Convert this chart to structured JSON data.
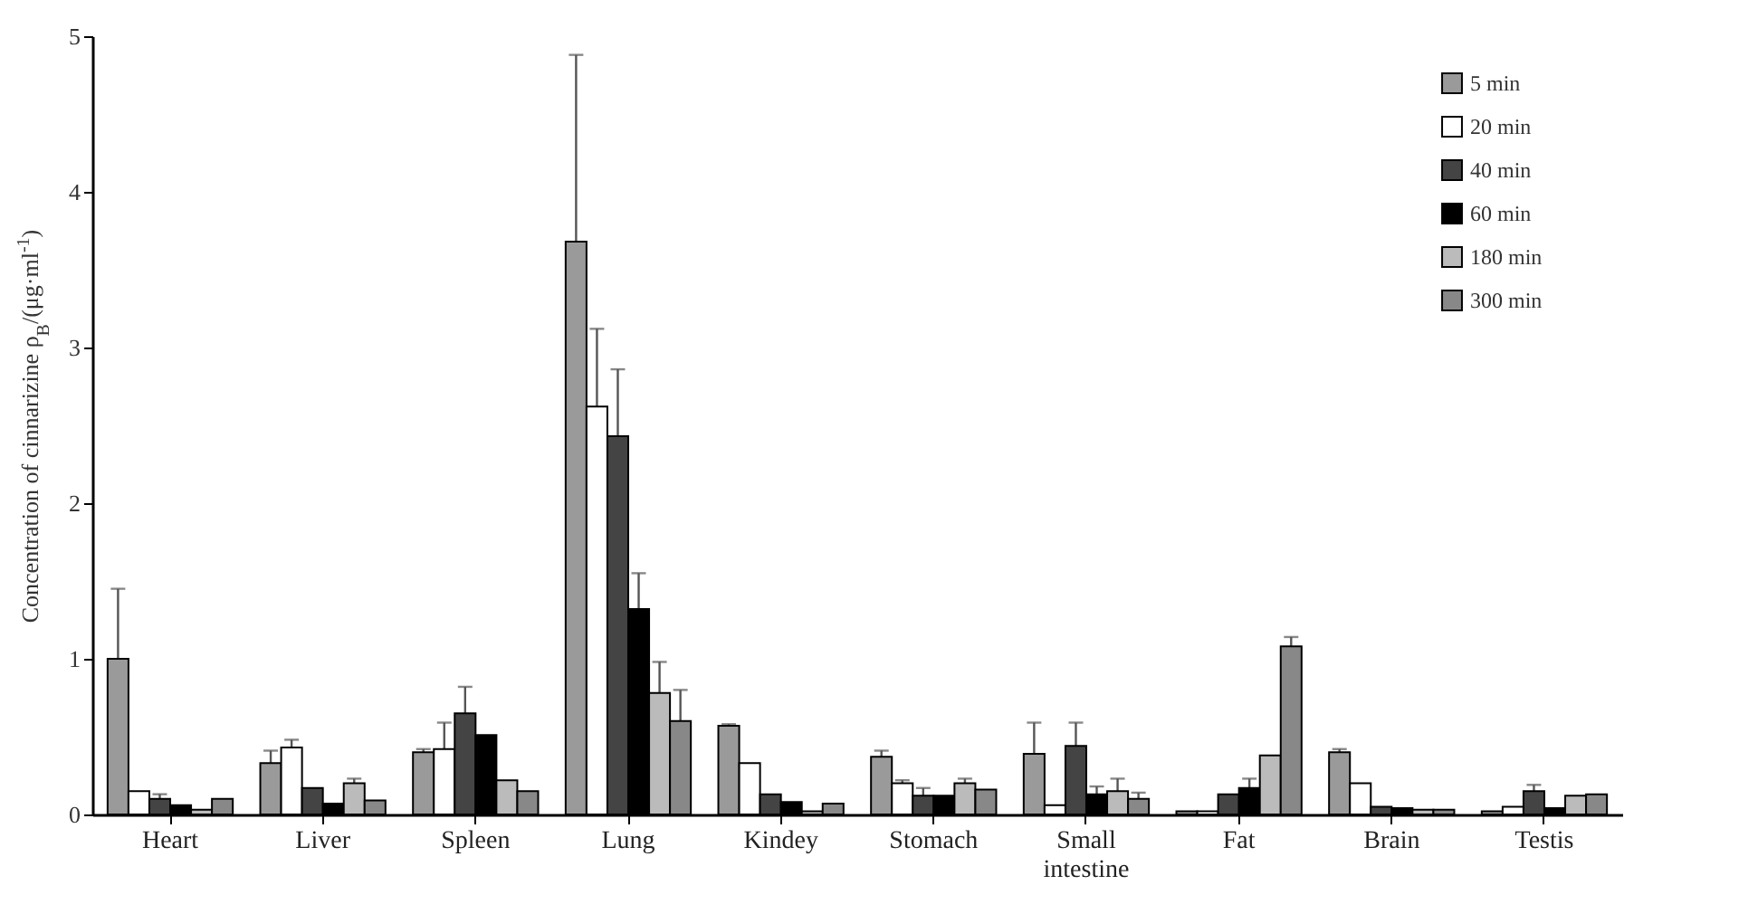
{
  "chart_data": {
    "type": "bar",
    "ylabel": "Concentration of cinnarizine ρ$_{B}$/(μg·ml$^{-1}$)",
    "categories": [
      "Heart",
      "Liver",
      "Spleen",
      "Lung",
      "Kindey",
      "Stomach",
      "Small intestine",
      "Fat",
      "Brain",
      "Testis"
    ],
    "series": [
      {
        "name": "5 min",
        "color": "#9a9a9a",
        "values": [
          1.0,
          0.33,
          0.4,
          3.68,
          0.57,
          0.37,
          0.39,
          0.02,
          0.4,
          0.02
        ],
        "errors": [
          0.45,
          0.08,
          0.02,
          1.2,
          0.01,
          0.04,
          0.2,
          null,
          0.02,
          null
        ]
      },
      {
        "name": "20 min",
        "color": "#ffffff",
        "values": [
          0.15,
          0.43,
          0.42,
          2.62,
          0.33,
          0.2,
          0.06,
          0.02,
          0.2,
          0.05
        ],
        "errors": [
          null,
          0.05,
          0.17,
          0.5,
          null,
          0.02,
          null,
          null,
          null,
          null
        ]
      },
      {
        "name": "40 min",
        "color": "#444444",
        "values": [
          0.1,
          0.17,
          0.65,
          2.43,
          0.13,
          0.12,
          0.44,
          0.13,
          0.05,
          0.15
        ],
        "errors": [
          0.03,
          null,
          0.17,
          0.43,
          null,
          0.05,
          0.15,
          null,
          null,
          0.04
        ]
      },
      {
        "name": "60 min",
        "color": "#000000",
        "values": [
          0.06,
          0.07,
          0.51,
          1.32,
          0.08,
          0.12,
          0.13,
          0.17,
          0.04,
          0.04
        ],
        "errors": [
          null,
          null,
          null,
          0.23,
          null,
          null,
          0.05,
          0.06,
          null,
          null
        ]
      },
      {
        "name": "180 min",
        "color": "#bbbbbb",
        "values": [
          0.03,
          0.2,
          0.22,
          0.78,
          0.02,
          0.2,
          0.15,
          0.38,
          0.03,
          0.12
        ],
        "errors": [
          null,
          0.03,
          null,
          0.2,
          null,
          0.03,
          0.08,
          null,
          null,
          null
        ]
      },
      {
        "name": "300 min",
        "color": "#888888",
        "values": [
          0.1,
          0.09,
          0.15,
          0.6,
          0.07,
          0.16,
          0.1,
          1.08,
          0.03,
          0.13
        ],
        "errors": [
          null,
          null,
          null,
          0.2,
          null,
          null,
          0.04,
          0.06,
          null,
          null
        ]
      }
    ],
    "ylim": [
      0,
      5
    ],
    "yticks": [
      0,
      1,
      2,
      3,
      4,
      5
    ],
    "grid": false,
    "legend": "top right"
  }
}
